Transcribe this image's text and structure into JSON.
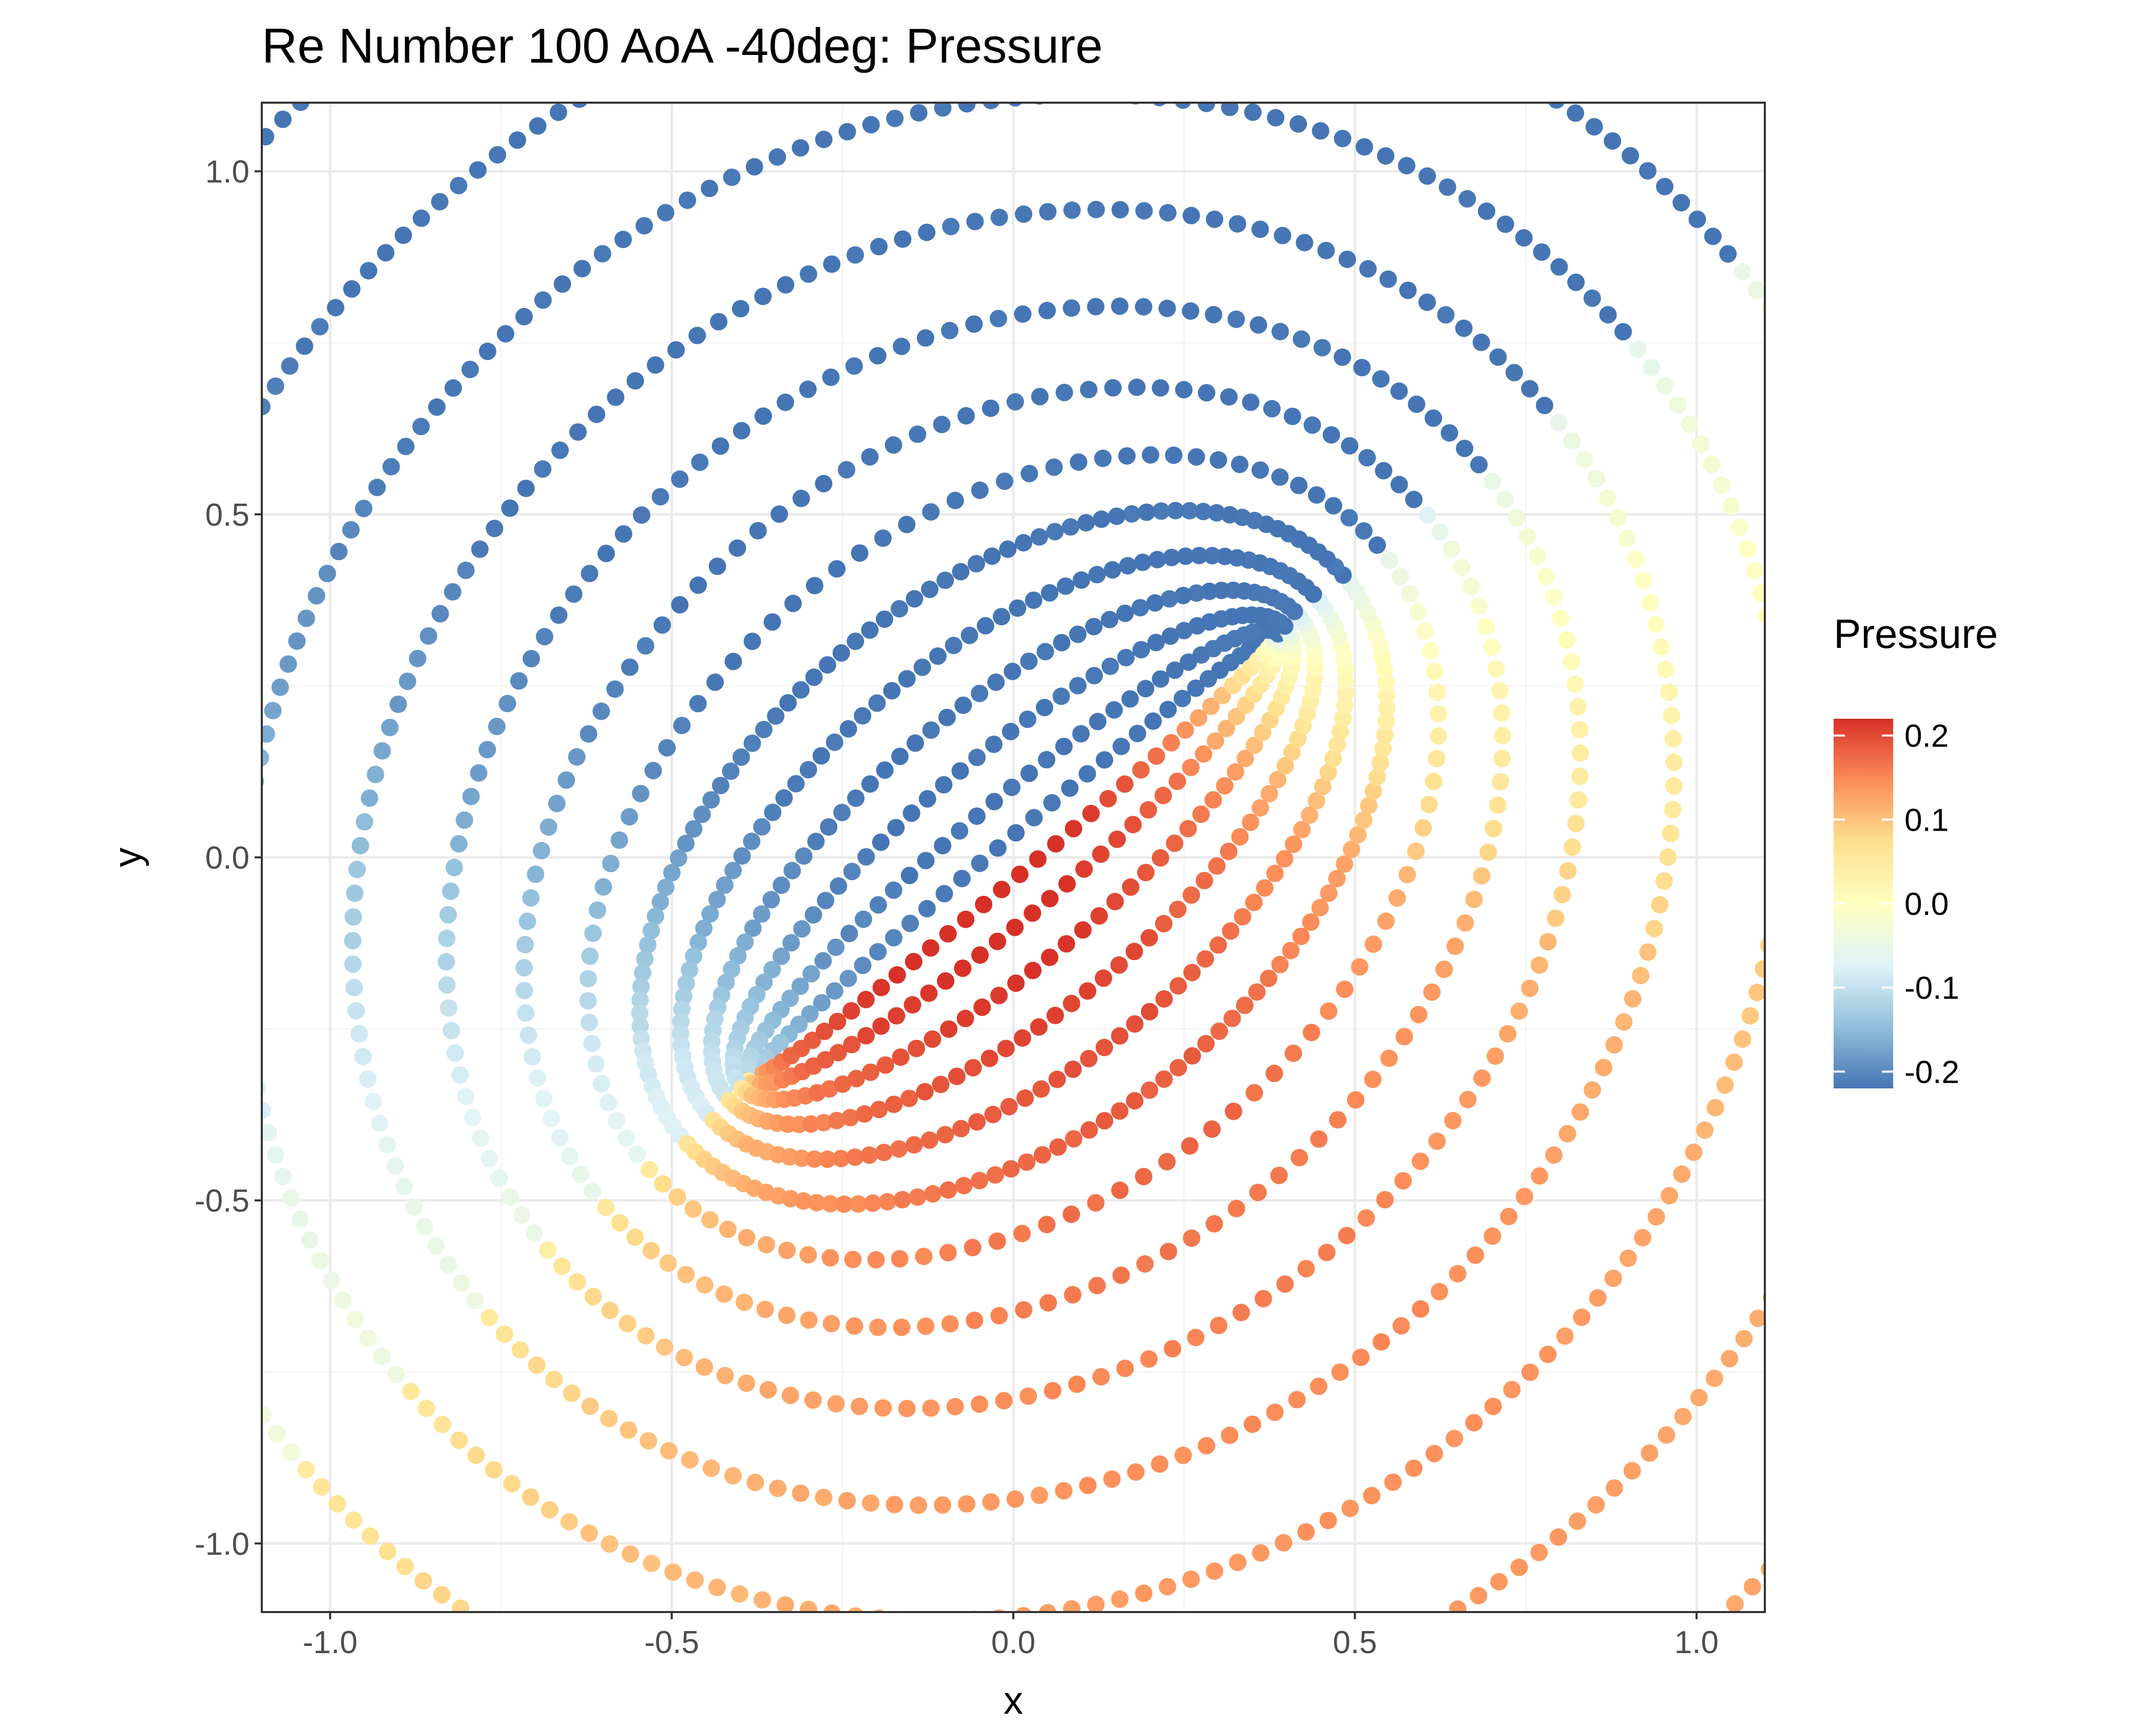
{
  "chart_data": {
    "type": "scatter",
    "title": "Re Number 100 AoA -40deg: Pressure",
    "xlabel": "x",
    "ylabel": "y",
    "xlim": [
      -1.1,
      1.1
    ],
    "ylim": [
      -1.1,
      1.1
    ],
    "x_ticks": [
      -1.0,
      -0.5,
      0.0,
      0.5,
      1.0
    ],
    "x_tick_labels": [
      "-1.0",
      "-0.5",
      "0.0",
      "0.5",
      "1.0"
    ],
    "y_ticks": [
      -1.0,
      -0.5,
      0.0,
      0.5,
      1.0
    ],
    "y_tick_labels": [
      "-1.0",
      "-0.5",
      "0.0",
      "0.5",
      "1.0"
    ],
    "grid": true,
    "theme": "bw",
    "color_variable": "Pressure",
    "description_series": "Pressure field sampled on an elliptic (O-type) mesh around a flat plate of chord ~1 inclined at 40 degrees, centered near (0,0). Points shown: upstream/windward side high pressure (red), leeward side low pressure (blue).",
    "plate": {
      "center": [
        0.0,
        0.0
      ],
      "half_chord": 0.5,
      "angle_deg": 40
    },
    "legend": {
      "title": "Pressure",
      "placement": "right",
      "range": [
        -0.22,
        0.22
      ],
      "ticks": [
        0.2,
        0.1,
        0.0,
        -0.1,
        -0.2
      ],
      "tick_labels": [
        "0.2",
        "0.1",
        "0.0",
        "-0.1",
        "-0.2"
      ],
      "palette": [
        "#4575b4",
        "#91bfdb",
        "#e0f3f8",
        "#ffffbf",
        "#fee090",
        "#fc8d59",
        "#d73027"
      ]
    },
    "colors": {
      "panel_border": "#333333",
      "grid_major": "#ebebeb",
      "grid_minor": "#f5f5f5",
      "text_axis": "#4d4d4d"
    }
  }
}
